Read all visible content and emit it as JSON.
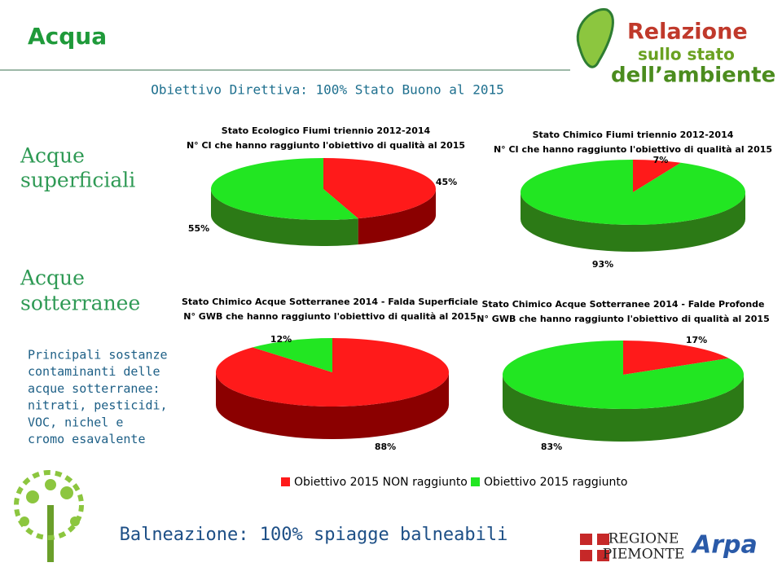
{
  "slide": {
    "title": "Acqua",
    "subtitle": "Obiettivo Direttiva: 100% Stato Buono al 2015",
    "section_surface": [
      "Acque",
      "superficiali"
    ],
    "section_ground": [
      "Acque",
      "sotterranee"
    ],
    "note": [
      "Principali sostanze",
      "contaminanti delle",
      "acque sotterranee:",
      "nitrati, pesticidi,",
      "VOC, nichel e",
      "cromo esavalente"
    ],
    "footer": "Balneazione: 100% spiagge balneabili",
    "logo_top": [
      "Relazione",
      "sullo stato",
      "dell’ambiente"
    ],
    "logo_region": [
      "REGIONE",
      "PIEMONTE"
    ],
    "logo_arpa": "Arpa"
  },
  "legend": [
    {
      "name": "Obiettivo 2015 NON raggiunto",
      "color": "#ff1a1a"
    },
    {
      "name": "Obiettivo 2015 raggiunto",
      "color": "#22e622"
    }
  ],
  "chart_data": [
    {
      "type": "pie",
      "title": "Stato Ecologico Fiumi triennio 2012-2014",
      "subtitle": "N° CI che hanno raggiunto l'obiettivo di qualità al 2015",
      "values": [
        45,
        55
      ],
      "value_labels": [
        "45%",
        "55%"
      ]
    },
    {
      "type": "pie",
      "title": "Stato Chimico Fiumi triennio 2012-2014",
      "subtitle": "N° CI che hanno raggiunto l'obiettivo di qualità al 2015",
      "values": [
        7,
        93
      ],
      "value_labels": [
        "7%",
        "93%"
      ]
    },
    {
      "type": "pie",
      "title": "Stato Chimico Acque Sotterranee 2014 - Falda Superficiale",
      "subtitle": "N° GWB che hanno raggiunto l'obiettivo di qualità al 2015",
      "values": [
        88,
        12
      ],
      "value_labels": [
        "88%",
        "12%"
      ]
    },
    {
      "type": "pie",
      "title": "Stato Chimico Acque Sotterranee 2014 - Falde Profonde",
      "subtitle": "N° GWB che hanno raggiunto l'obiettivo di qualità al 2015",
      "values": [
        17,
        83
      ],
      "value_labels": [
        "17%",
        "83%"
      ]
    }
  ]
}
